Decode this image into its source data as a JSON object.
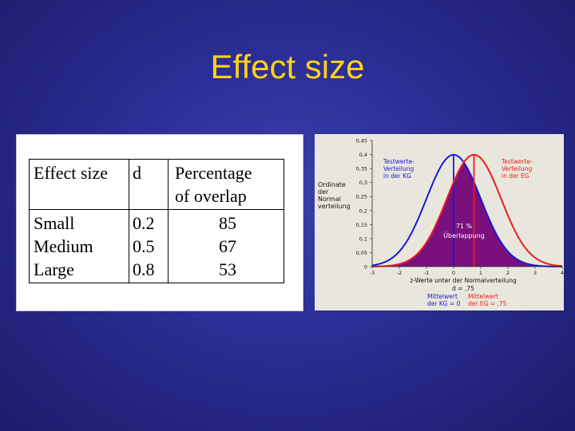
{
  "slide": {
    "title": "Effect size",
    "table": {
      "headers": [
        "Effect size",
        "d",
        "Percentage of overlap"
      ],
      "header_overlap_lines": [
        "Percentage",
        "of overlap"
      ],
      "sizes": [
        "Small",
        "Medium",
        "Large"
      ],
      "d_values": [
        "0.2",
        "0.5",
        "0.8"
      ],
      "overlaps": [
        "85",
        "67",
        "53"
      ]
    }
  },
  "chart_data": {
    "type": "line",
    "ylabel": "Ordinate der Normalverteilung",
    "ylabel_lines": [
      "Ordinate",
      "der",
      "Normal",
      "verteilung"
    ],
    "xlabel": "z-Werte unter der Normalverteilung",
    "xlim": [
      -3,
      4
    ],
    "ylim": [
      0,
      0.45
    ],
    "x_ticks": [
      "-3",
      "-2",
      "-1",
      "0",
      "1",
      "2",
      "3",
      "4"
    ],
    "y_ticks": [
      "0",
      "0,05",
      "0,1",
      "0,15",
      "0,2",
      "0,25",
      "0,3",
      "0,35",
      "0,4",
      "0,45"
    ],
    "d": 0.75,
    "d_label": "d = ,75",
    "overlap_label": "71 %",
    "overlap_caption": "Überlappung",
    "colors": {
      "blue": "#1a1ad8",
      "red": "#ee1c1c",
      "overlap_fill": "#7a107e"
    },
    "series": [
      {
        "name_lines": [
          "Testwerte-",
          "Verteilung",
          "in der KG"
        ],
        "mean": 0,
        "sd": 1,
        "color": "#1a1ad8",
        "mean_label_lines": [
          "Mittelwert",
          "der KG = 0"
        ]
      },
      {
        "name_lines": [
          "Testwerte-",
          "Verteilung",
          "in der EG"
        ],
        "mean": 0.75,
        "sd": 1,
        "color": "#ee1c1c",
        "mean_label_lines": [
          "Mittelwert",
          "der EG = ,75"
        ]
      }
    ]
  }
}
